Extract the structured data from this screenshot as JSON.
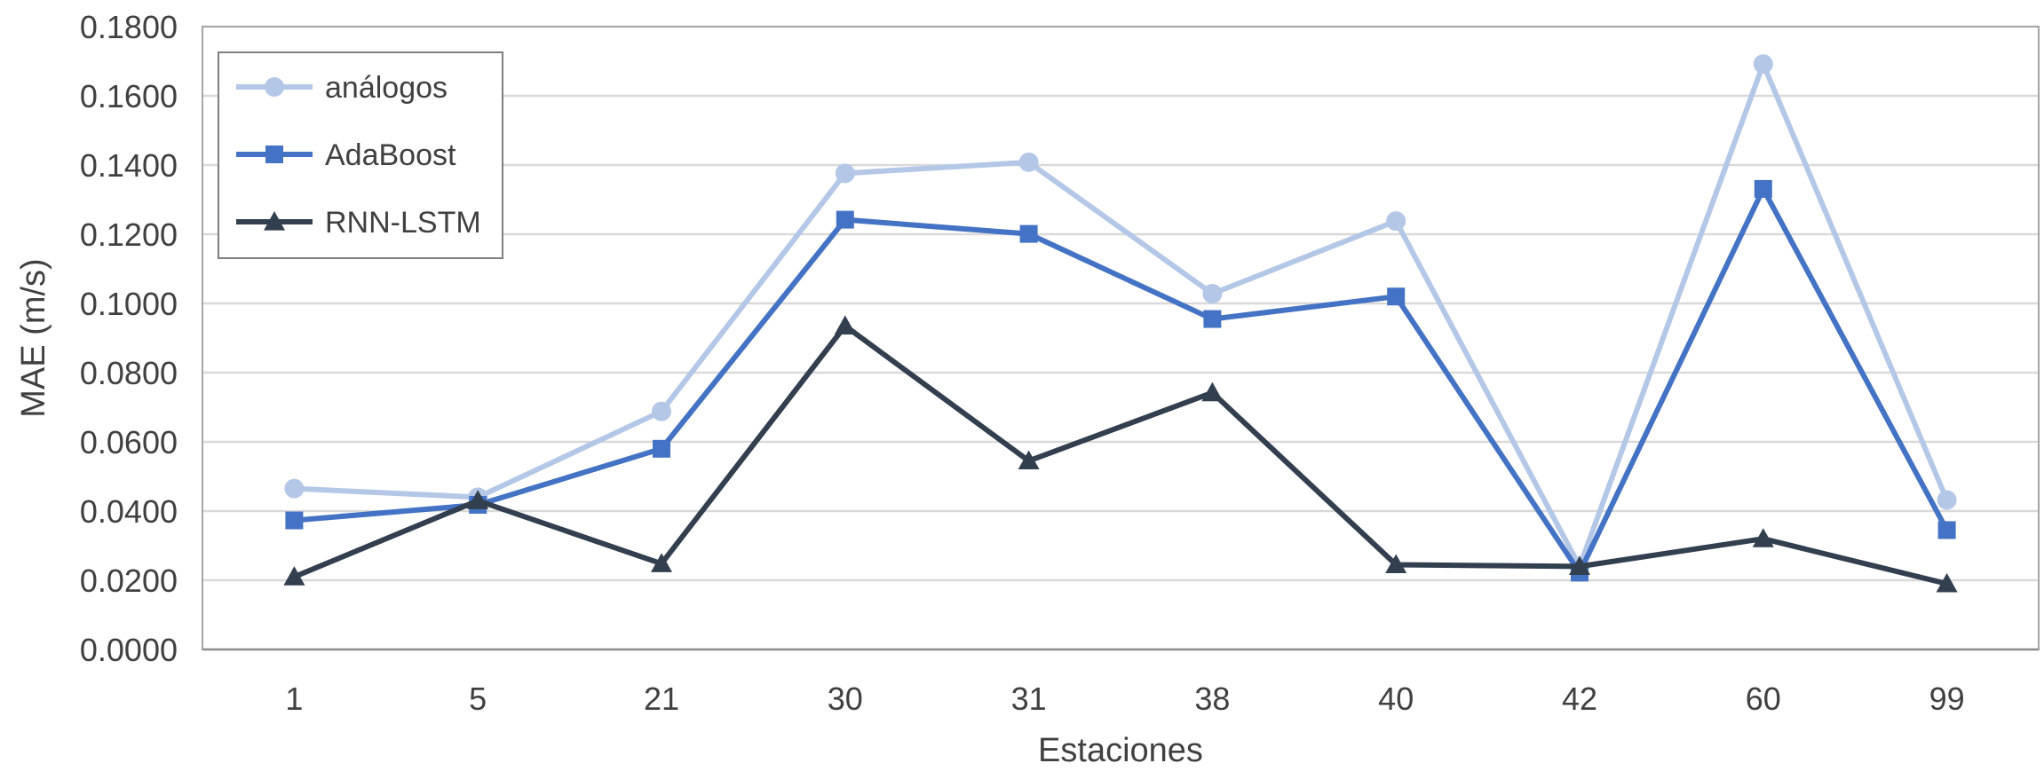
{
  "chart_data": {
    "type": "line",
    "categories": [
      "1",
      "5",
      "21",
      "30",
      "31",
      "38",
      "40",
      "42",
      "60",
      "99"
    ],
    "series": [
      {
        "name": "análogos",
        "marker": "circle",
        "color": "#b4c7e7",
        "values": [
          0.0465,
          0.044,
          0.0688,
          0.1376,
          0.1408,
          0.1028,
          0.1238,
          0.024,
          0.1692,
          0.0432
        ]
      },
      {
        "name": "AdaBoost",
        "marker": "square",
        "color": "#4472c4",
        "values": [
          0.0373,
          0.0418,
          0.058,
          0.1242,
          0.1201,
          0.0955,
          0.102,
          0.0222,
          0.1331,
          0.0345
        ]
      },
      {
        "name": "RNN-LSTM",
        "marker": "triangle",
        "color": "#323f4f",
        "values": [
          0.021,
          0.043,
          0.0248,
          0.0935,
          0.0545,
          0.0742,
          0.0245,
          0.024,
          0.032,
          0.019
        ]
      }
    ],
    "yticks": [
      "0.0000",
      "0.0200",
      "0.0400",
      "0.0600",
      "0.0800",
      "0.1000",
      "0.1200",
      "0.1400",
      "0.1600",
      "0.1800"
    ],
    "ylim": [
      0,
      0.18
    ],
    "xlabel": "Estaciones",
    "ylabel": "MAE (m/s)",
    "grid": true,
    "legend_position": "top-left"
  }
}
